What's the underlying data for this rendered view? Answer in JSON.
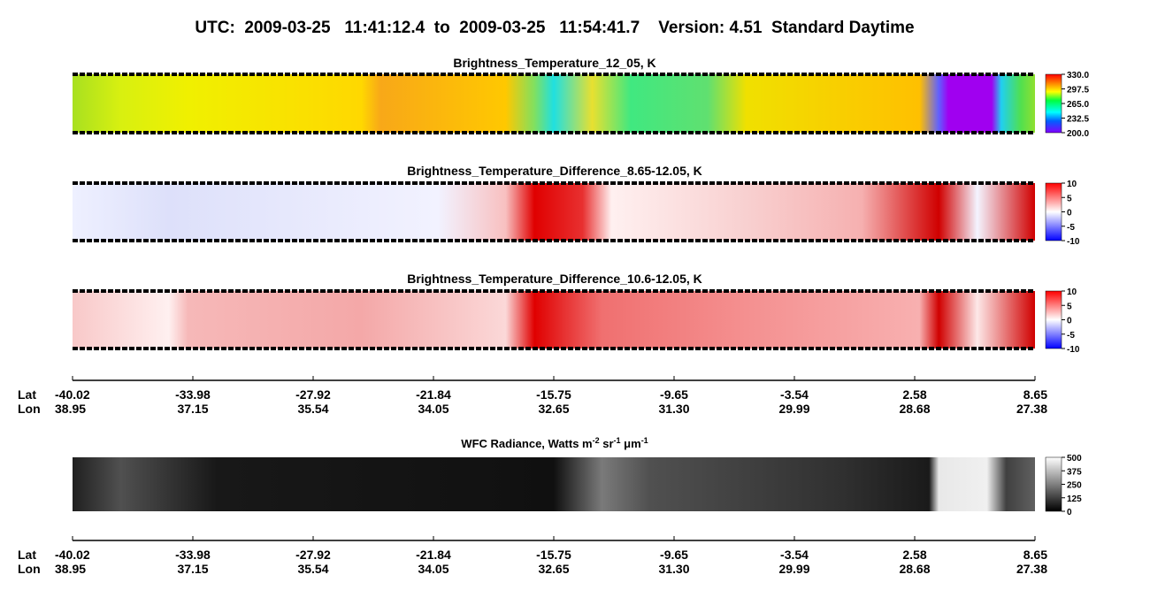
{
  "title": "UTC:  2009-03-25   11:41:12.4  to  2009-03-25   11:54:41.7    Version: 4.51  Standard Daytime",
  "panels": [
    {
      "title": "Brightness_Temperature_12_05, K",
      "colorbar": [
        "330.0",
        "297.5",
        "265.0",
        "232.5",
        "200.0"
      ]
    },
    {
      "title": "Brightness_Temperature_Difference_8.65-12.05, K",
      "colorbar": [
        "10",
        "5",
        "0",
        "-5",
        "-10"
      ]
    },
    {
      "title": "Brightness_Temperature_Difference_10.6-12.05, K",
      "colorbar": [
        "10",
        "5",
        "0",
        "-5",
        "-10"
      ]
    }
  ],
  "axis": {
    "lat_label": "Lat",
    "lon_label": "Lon",
    "lat": [
      "-40.02",
      "-33.98",
      "-27.92",
      "-21.84",
      "-15.75",
      "-9.65",
      "-3.54",
      "2.58",
      "8.65"
    ],
    "lon": [
      "38.95",
      "37.15",
      "35.54",
      "34.05",
      "32.65",
      "31.30",
      "29.99",
      "28.68",
      "27.38"
    ]
  },
  "wfc": {
    "title_parts": [
      "WFC Radiance, Watts m",
      "-2",
      " sr",
      "-1",
      " μm",
      "-1"
    ],
    "colorbar": [
      "500",
      "375",
      "250",
      "125",
      "0"
    ]
  },
  "axis2": {
    "lat_label": "Lat",
    "lon_label": "Lon",
    "lat": [
      "-40.02",
      "-33.98",
      "-27.92",
      "-21.84",
      "-15.75",
      "-9.65",
      "-3.54",
      "2.58",
      "8.65"
    ],
    "lon": [
      "38.95",
      "37.15",
      "35.54",
      "34.05",
      "32.65",
      "31.30",
      "29.99",
      "28.68",
      "27.38"
    ]
  }
}
